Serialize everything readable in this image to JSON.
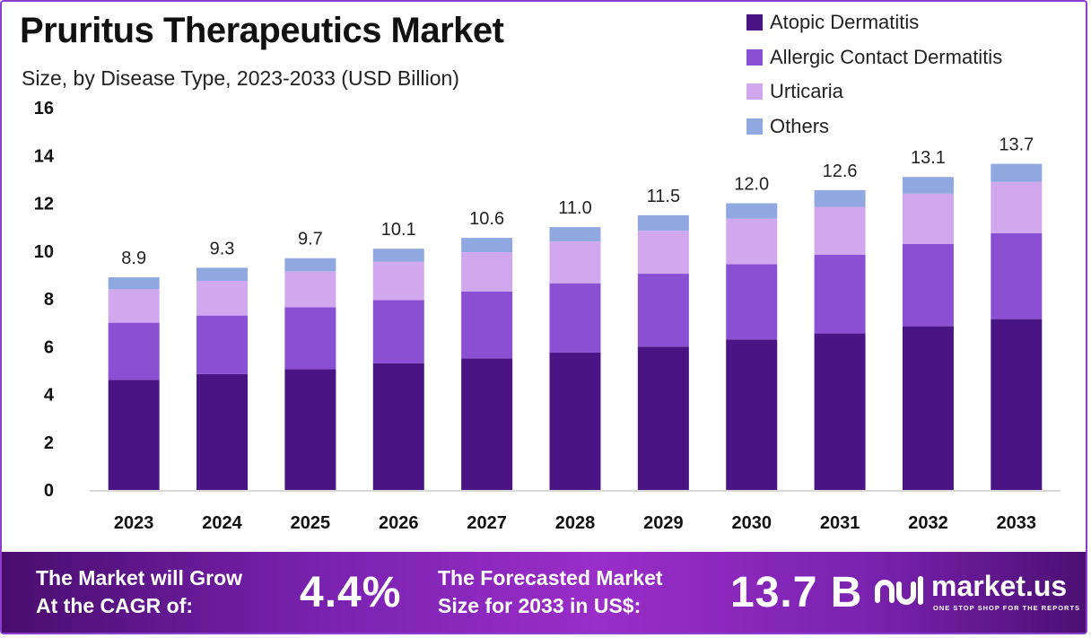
{
  "title": "Pruritus Therapeutics Market",
  "subtitle": "Size, by Disease Type, 2023-2033 (USD Billion)",
  "colors": {
    "atopic": "#4b1484",
    "allergic": "#8a4fd3",
    "urticaria": "#d1a8ee",
    "others": "#8fa8df",
    "axis": "#cccccc"
  },
  "chart_data": {
    "type": "bar",
    "stacked": true,
    "title": "Pruritus Therapeutics Market",
    "subtitle": "Size, by Disease Type, 2023-2033 (USD Billion)",
    "xlabel": "",
    "ylabel": "",
    "ylim": [
      0,
      16
    ],
    "yticks": [
      0,
      2,
      4,
      6,
      8,
      10,
      12,
      14,
      16
    ],
    "grid": false,
    "legend_position": "top-right",
    "categories": [
      "2023",
      "2024",
      "2025",
      "2026",
      "2027",
      "2028",
      "2029",
      "2030",
      "2031",
      "2032",
      "2033"
    ],
    "totals": [
      "8.9",
      "9.3",
      "9.7",
      "10.1",
      "10.6",
      "11.0",
      "11.5",
      "12.0",
      "12.6",
      "13.1",
      "13.7"
    ],
    "series": [
      {
        "name": "Atopic Dermatitis",
        "color_key": "atopic",
        "values": [
          4.6,
          4.85,
          5.05,
          5.3,
          5.5,
          5.75,
          6.0,
          6.3,
          6.55,
          6.85,
          7.15
        ]
      },
      {
        "name": "Allergic Contact Dermatitis",
        "color_key": "allergic",
        "values": [
          2.4,
          2.45,
          2.6,
          2.65,
          2.8,
          2.9,
          3.05,
          3.15,
          3.3,
          3.45,
          3.6
        ]
      },
      {
        "name": "Urticaria",
        "color_key": "urticaria",
        "values": [
          1.4,
          1.45,
          1.5,
          1.6,
          1.65,
          1.75,
          1.8,
          1.9,
          2.0,
          2.1,
          2.15
        ]
      },
      {
        "name": "Others",
        "color_key": "others",
        "values": [
          0.5,
          0.55,
          0.55,
          0.55,
          0.6,
          0.6,
          0.65,
          0.65,
          0.7,
          0.7,
          0.75
        ]
      }
    ]
  },
  "banner": {
    "cagr_text_line1": "The Market will Grow",
    "cagr_text_line2": "At the CAGR of:",
    "cagr_value": "4.4%",
    "forecast_text_line1": "The Forecasted Market",
    "forecast_text_line2": "Size for 2033 in US$:",
    "forecast_value": "13.7 B",
    "logo_name": "market.us",
    "logo_tagline": "ONE STOP SHOP FOR THE REPORTS"
  }
}
